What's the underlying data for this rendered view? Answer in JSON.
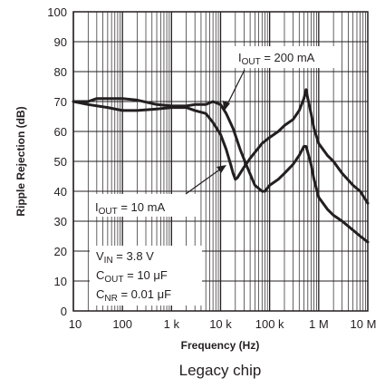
{
  "chart_data": {
    "type": "line",
    "xlabel": "Frequency (Hz)",
    "ylabel": "Ripple Rejection (dB)",
    "x_scale": "log",
    "xlim": [
      10,
      10000000
    ],
    "ylim": [
      0,
      100
    ],
    "x_ticks": [
      {
        "value": 10,
        "label": "10"
      },
      {
        "value": 100,
        "label": "100"
      },
      {
        "value": 1000,
        "label": "1 k"
      },
      {
        "value": 10000,
        "label": "10 k"
      },
      {
        "value": 100000,
        "label": "100 k"
      },
      {
        "value": 1000000,
        "label": "1 M"
      },
      {
        "value": 10000000,
        "label": "10 M"
      }
    ],
    "y_ticks": [
      0,
      10,
      20,
      30,
      40,
      50,
      60,
      70,
      80,
      90,
      100
    ],
    "grid": true,
    "series": [
      {
        "name": "IOUT = 200 mA",
        "color": "#231f20",
        "x": [
          10,
          15,
          20,
          30,
          50,
          100,
          200,
          500,
          1000,
          2000,
          3000,
          5000,
          7000,
          10000,
          13000,
          18000,
          25000,
          35000,
          50000,
          70000,
          80000,
          100000,
          150000,
          200000,
          300000,
          400000,
          500000,
          550000,
          600000,
          700000,
          800000,
          1000000,
          1500000,
          2000000,
          3000000,
          5000000,
          7000000,
          10000000
        ],
        "y": [
          70,
          70,
          70,
          71,
          71,
          71,
          70.5,
          69,
          68.5,
          68.5,
          69,
          69,
          70,
          69,
          66,
          61,
          54,
          48,
          42,
          40,
          40,
          42,
          44,
          46,
          49,
          52,
          55,
          55,
          53,
          49,
          44,
          38,
          34,
          32,
          30,
          27,
          25,
          23
        ]
      },
      {
        "name": "IOUT = 10 mA",
        "color": "#231f20",
        "x": [
          10,
          20,
          50,
          100,
          200,
          500,
          1000,
          2000,
          3000,
          5000,
          7000,
          10000,
          13000,
          16000,
          18000,
          20000,
          22000,
          25000,
          30000,
          40000,
          50000,
          70000,
          100000,
          150000,
          200000,
          300000,
          400000,
          500000,
          550000,
          600000,
          700000,
          800000,
          1000000,
          1500000,
          2000000,
          3000000,
          5000000,
          7000000,
          10000000
        ],
        "y": [
          70,
          69,
          68,
          67,
          67,
          67.5,
          68,
          68,
          67,
          66,
          63,
          59,
          54,
          49,
          46,
          44,
          44.5,
          46,
          48,
          51,
          53,
          56,
          58,
          60,
          62,
          64,
          67,
          71,
          74,
          71,
          66,
          61,
          56,
          52,
          50,
          46,
          42,
          40,
          36
        ]
      }
    ],
    "annotations": [
      {
        "label": "I",
        "sub": "OUT",
        "rest": " = 200 mA",
        "points_to": "IOUT = 200 mA"
      },
      {
        "label": "I",
        "sub": "OUT",
        "rest": " = 10 mA",
        "points_to": "IOUT = 10 mA"
      }
    ],
    "conditions": [
      {
        "label": "V",
        "sub": "IN",
        "rest": " = 3.8 V"
      },
      {
        "label": "C",
        "sub": "OUT",
        "rest": " = 10 μF"
      },
      {
        "label": "C",
        "sub": "NR",
        "rest": " = 0.01 μF"
      }
    ]
  },
  "caption": "Legacy chip"
}
